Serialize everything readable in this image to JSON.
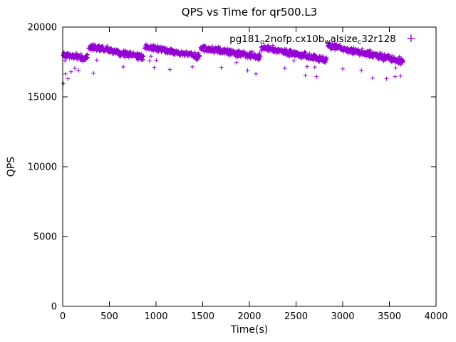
{
  "chart_data": {
    "type": "scatter",
    "title": "QPS vs Time for qr500.L3",
    "xlabel": "Time(s)",
    "ylabel": "QPS",
    "xlim": [
      0,
      4000
    ],
    "ylim": [
      0,
      20000
    ],
    "xticks": [
      0,
      500,
      1000,
      1500,
      2000,
      2500,
      3000,
      3500,
      4000
    ],
    "yticks": [
      0,
      5000,
      10000,
      15000,
      20000
    ],
    "grid": false,
    "legend": {
      "position": "top-right-inside",
      "marker": "plus",
      "label_plain": "pg181_o2nofp.cx10b_walsize_c32r128",
      "label_segments": [
        {
          "text": "pg181"
        },
        {
          "text": "o",
          "sub": true
        },
        {
          "text": "2nofp.cx10b"
        },
        {
          "text": "w",
          "sub": true
        },
        {
          "text": "alsize"
        },
        {
          "text": "c",
          "sub": true
        },
        {
          "text": "32r128"
        }
      ]
    },
    "series": [
      {
        "name": "pg181_o2nofp.cx10b_walsize_c32r128",
        "marker": "plus",
        "color": "#9400d3",
        "sample_interval_s": 2.5,
        "noise_qps": 115,
        "seed": 1337,
        "segments": [
          {
            "t0": 2,
            "t1": 268,
            "q0": 18050,
            "q1": 17750
          },
          {
            "t0": 278,
            "t1": 868,
            "q0": 18600,
            "q1": 17850
          },
          {
            "t0": 878,
            "t1": 1468,
            "q0": 18650,
            "q1": 17900
          },
          {
            "t0": 1478,
            "t1": 2118,
            "q0": 18550,
            "q1": 17850
          },
          {
            "t0": 2128,
            "t1": 2828,
            "q0": 18550,
            "q1": 17650
          },
          {
            "t0": 2838,
            "t1": 3648,
            "q0": 18700,
            "q1": 17550
          }
        ],
        "outliers": [
          [
            8,
            15950
          ],
          [
            30,
            16650
          ],
          [
            55,
            16300
          ],
          [
            90,
            16800
          ],
          [
            130,
            17050
          ],
          [
            170,
            16900
          ],
          [
            330,
            16700
          ],
          [
            650,
            17150
          ],
          [
            980,
            17100
          ],
          [
            1150,
            16950
          ],
          [
            1390,
            17150
          ],
          [
            1700,
            17100
          ],
          [
            1980,
            16900
          ],
          [
            2070,
            16650
          ],
          [
            2380,
            17050
          ],
          [
            2600,
            16550
          ],
          [
            2720,
            16450
          ],
          [
            3000,
            17000
          ],
          [
            3200,
            16900
          ],
          [
            3320,
            16350
          ],
          [
            3470,
            16300
          ],
          [
            3560,
            16450
          ],
          [
            3620,
            16500
          ]
        ]
      }
    ]
  }
}
